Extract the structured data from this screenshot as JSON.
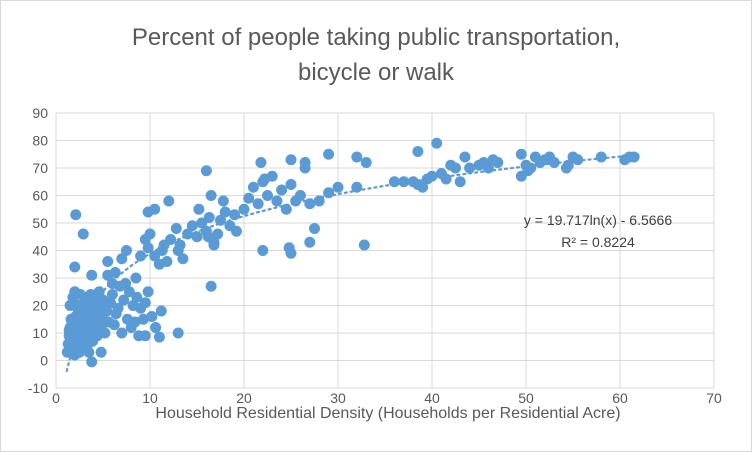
{
  "chart_data": {
    "type": "scatter",
    "title_lines": [
      "Percent of people taking public transportation,",
      "bicycle or walk"
    ],
    "xlabel": "Household Residential Density (Households per Residential Acre)",
    "ylabel": "",
    "xlim": [
      0,
      70
    ],
    "ylim": [
      -10,
      90
    ],
    "x_ticks": [
      0,
      10,
      20,
      30,
      40,
      50,
      60,
      70
    ],
    "y_ticks": [
      -10,
      0,
      10,
      20,
      30,
      40,
      50,
      60,
      70,
      80,
      90
    ],
    "grid": true,
    "legend": "none",
    "marker_color": "#5b9bd5",
    "trendline": {
      "type": "logarithmic",
      "a": 19.717,
      "b": -6.5666,
      "equation_label": "y = 19.717ln(x) - 6.5666",
      "r2_label": "R² = 0.8224",
      "color": "#5b9bd5"
    },
    "points": [
      [
        1.2,
        3
      ],
      [
        1.3,
        6
      ],
      [
        1.4,
        9
      ],
      [
        1.5,
        12
      ],
      [
        1.6,
        4
      ],
      [
        1.7,
        8
      ],
      [
        1.8,
        14
      ],
      [
        1.9,
        10
      ],
      [
        2.0,
        5
      ],
      [
        2.1,
        16
      ],
      [
        2.2,
        7
      ],
      [
        2.3,
        11
      ],
      [
        2.4,
        20
      ],
      [
        2.5,
        6
      ],
      [
        2.6,
        13
      ],
      [
        2.7,
        9
      ],
      [
        2.8,
        18
      ],
      [
        2.9,
        4
      ],
      [
        3.0,
        15
      ],
      [
        3.1,
        8
      ],
      [
        3.2,
        22
      ],
      [
        3.3,
        12
      ],
      [
        3.4,
        6
      ],
      [
        3.5,
        17
      ],
      [
        3.6,
        10
      ],
      [
        3.7,
        24
      ],
      [
        3.8,
        14
      ],
      [
        3.9,
        7
      ],
      [
        4.0,
        19
      ],
      [
        4.1,
        11
      ],
      [
        4.2,
        16
      ],
      [
        4.3,
        21
      ],
      [
        4.4,
        9
      ],
      [
        4.5,
        13
      ],
      [
        4.6,
        25
      ],
      [
        4.7,
        18
      ],
      [
        4.8,
        12
      ],
      [
        4.9,
        15
      ],
      [
        5.0,
        22
      ],
      [
        5.2,
        10
      ],
      [
        1.5,
        20
      ],
      [
        1.8,
        23
      ],
      [
        2.0,
        25
      ],
      [
        2.3,
        19
      ],
      [
        2.6,
        24
      ],
      [
        3.0,
        21
      ],
      [
        3.4,
        23
      ],
      [
        3.8,
        20
      ],
      [
        4.2,
        23
      ],
      [
        4.6,
        22
      ],
      [
        1.4,
        11
      ],
      [
        1.6,
        15
      ],
      [
        2.2,
        14
      ],
      [
        2.8,
        12
      ],
      [
        3.2,
        16
      ],
      [
        3.6,
        13
      ],
      [
        4.0,
        9
      ],
      [
        4.4,
        17
      ],
      [
        4.8,
        20
      ],
      [
        5.1,
        14
      ],
      [
        2.0,
        2
      ],
      [
        2.5,
        3
      ],
      [
        3.0,
        5
      ],
      [
        3.5,
        3
      ],
      [
        4.8,
        3
      ],
      [
        3.8,
        -0.5
      ],
      [
        5.4,
        18
      ],
      [
        5.6,
        14
      ],
      [
        5.8,
        21
      ],
      [
        6.0,
        24
      ],
      [
        6.2,
        13
      ],
      [
        6.4,
        17
      ],
      [
        6.6,
        19
      ],
      [
        6.8,
        27
      ],
      [
        7.0,
        10
      ],
      [
        7.2,
        22
      ],
      [
        7.4,
        28
      ],
      [
        7.6,
        15
      ],
      [
        7.8,
        25
      ],
      [
        8.0,
        12
      ],
      [
        8.2,
        20
      ],
      [
        8.4,
        14
      ],
      [
        8.6,
        23
      ],
      [
        8.8,
        9
      ],
      [
        9.0,
        19
      ],
      [
        9.3,
        15
      ],
      [
        9.5,
        21
      ],
      [
        9.8,
        25
      ],
      [
        10.2,
        16
      ],
      [
        10.6,
        12
      ],
      [
        11.0,
        8.5
      ],
      [
        11.2,
        18
      ],
      [
        13.0,
        10
      ],
      [
        9.5,
        9
      ],
      [
        5.5,
        31
      ],
      [
        6.0,
        28
      ],
      [
        6.3,
        32
      ],
      [
        7.0,
        37
      ],
      [
        7.5,
        40
      ],
      [
        8.5,
        30
      ],
      [
        9.0,
        38
      ],
      [
        9.5,
        44
      ],
      [
        9.8,
        41
      ],
      [
        10.0,
        46
      ],
      [
        10.5,
        38
      ],
      [
        11.0,
        35
      ],
      [
        11.3,
        40
      ],
      [
        11.8,
        36
      ],
      [
        12.2,
        44
      ],
      [
        12.8,
        48
      ],
      [
        13.0,
        40
      ],
      [
        13.5,
        37
      ],
      [
        14.0,
        46
      ],
      [
        14.5,
        49
      ],
      [
        15.0,
        45
      ],
      [
        15.5,
        50
      ],
      [
        16.0,
        47
      ],
      [
        16.3,
        52
      ],
      [
        16.8,
        43
      ],
      [
        17.2,
        46
      ],
      [
        17.5,
        51
      ],
      [
        18.0,
        54
      ],
      [
        18.5,
        49
      ],
      [
        19.0,
        53
      ],
      [
        15.2,
        55
      ],
      [
        16.5,
        60
      ],
      [
        17.8,
        58
      ],
      [
        19.2,
        47
      ],
      [
        20.0,
        55
      ],
      [
        20.5,
        59
      ],
      [
        21.0,
        63
      ],
      [
        21.5,
        57
      ],
      [
        22.0,
        65
      ],
      [
        22.5,
        60
      ],
      [
        23.0,
        67
      ],
      [
        23.5,
        58
      ],
      [
        24.0,
        62
      ],
      [
        24.5,
        55
      ],
      [
        25.0,
        64
      ],
      [
        25.5,
        58
      ],
      [
        26.0,
        60
      ],
      [
        26.5,
        70
      ],
      [
        27.0,
        57
      ],
      [
        27.5,
        48
      ],
      [
        28.0,
        58
      ],
      [
        29.0,
        61
      ],
      [
        30.0,
        63
      ],
      [
        21.8,
        72
      ],
      [
        22.2,
        66
      ],
      [
        25.0,
        73
      ],
      [
        26.5,
        72
      ],
      [
        29.0,
        75
      ],
      [
        32.0,
        74
      ],
      [
        33.0,
        72
      ],
      [
        16.0,
        69
      ],
      [
        16.5,
        27
      ],
      [
        16.2,
        45
      ],
      [
        16.8,
        42
      ],
      [
        24.8,
        41
      ],
      [
        25.0,
        39
      ],
      [
        27.0,
        43
      ],
      [
        32.8,
        42
      ],
      [
        22.0,
        40
      ],
      [
        32.0,
        63
      ],
      [
        36.0,
        65
      ],
      [
        37.0,
        65
      ],
      [
        38.0,
        65
      ],
      [
        38.5,
        64
      ],
      [
        39.0,
        63
      ],
      [
        39.5,
        66
      ],
      [
        40.0,
        67
      ],
      [
        41.0,
        68
      ],
      [
        41.5,
        66
      ],
      [
        42.0,
        71
      ],
      [
        42.5,
        70
      ],
      [
        43.0,
        65
      ],
      [
        44.0,
        70
      ],
      [
        45.0,
        71
      ],
      [
        45.5,
        72
      ],
      [
        46.0,
        70
      ],
      [
        47.0,
        72
      ],
      [
        38.5,
        76
      ],
      [
        40.5,
        79
      ],
      [
        49.5,
        75
      ],
      [
        50.0,
        71
      ],
      [
        50.5,
        70
      ],
      [
        51.0,
        74
      ],
      [
        51.5,
        72
      ],
      [
        52.0,
        73
      ],
      [
        52.5,
        74
      ],
      [
        53.0,
        72
      ],
      [
        54.5,
        71
      ],
      [
        55.0,
        74
      ],
      [
        55.5,
        73
      ],
      [
        58.0,
        74
      ],
      [
        60.5,
        73
      ],
      [
        61.0,
        74
      ],
      [
        61.5,
        74
      ],
      [
        49.5,
        67
      ],
      [
        50.2,
        69
      ],
      [
        54.3,
        70
      ],
      [
        43.5,
        74
      ],
      [
        46.5,
        73
      ],
      [
        2.1,
        53
      ],
      [
        2.9,
        46
      ],
      [
        2.0,
        34
      ],
      [
        3.8,
        31
      ],
      [
        5.5,
        36
      ],
      [
        11.5,
        42
      ],
      [
        12.0,
        58
      ],
      [
        10.5,
        55
      ],
      [
        9.8,
        54
      ],
      [
        13.2,
        42
      ]
    ]
  }
}
